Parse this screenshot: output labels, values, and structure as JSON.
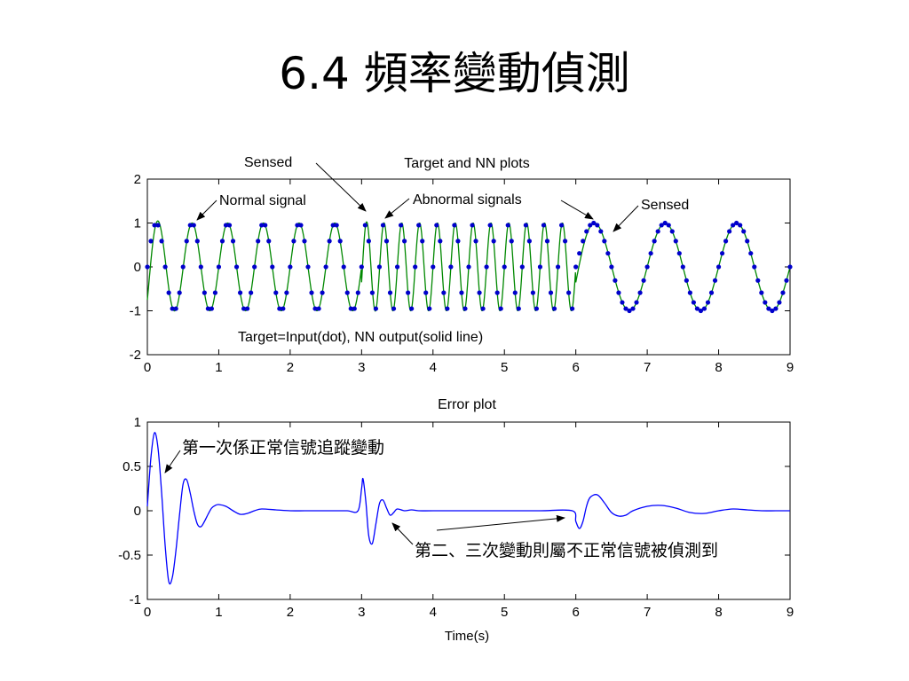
{
  "slide": {
    "title": "6.4 頻率變動偵測"
  },
  "chart_data": [
    {
      "type": "line",
      "title": "Target and NN plots",
      "xlabel": "",
      "ylabel": "",
      "xlim": [
        0,
        9
      ],
      "ylim": [
        -2,
        2
      ],
      "xticks": [
        "0",
        "1",
        "2",
        "3",
        "4",
        "5",
        "6",
        "7",
        "8",
        "9"
      ],
      "yticks": [
        "2",
        "1",
        "0",
        "-1",
        "-2"
      ],
      "grid": false,
      "legend": "none",
      "colors": {
        "target": "#0000cc",
        "nn_output": "#008800"
      },
      "segments": [
        {
          "t_start": 0,
          "t_end": 3,
          "frequency_hz": 2.0
        },
        {
          "t_start": 3,
          "t_end": 6,
          "frequency_hz": 4.0
        },
        {
          "t_start": 6,
          "t_end": 9,
          "frequency_hz": 1.0
        }
      ],
      "series": [
        {
          "style": "dots",
          "x_step": 0.05
        },
        {
          "style": "solid"
        }
      ],
      "annotations": {
        "sensed_1": "Sensed",
        "normal": "Normal signal",
        "abnormal": "Abnormal signals",
        "sensed_2": "Sensed",
        "footnote": "Target=Input(dot), NN output(solid line)"
      }
    },
    {
      "type": "line",
      "title": "Error plot",
      "xlabel": "Time(s)",
      "ylabel": "",
      "xlim": [
        0,
        9
      ],
      "ylim": [
        -1,
        1
      ],
      "xticks": [
        "0",
        "1",
        "2",
        "3",
        "4",
        "5",
        "6",
        "7",
        "8",
        "9"
      ],
      "yticks": [
        "1",
        "0.5",
        "0",
        "-0.5",
        "-1"
      ],
      "grid": false,
      "legend": "none",
      "colors": {
        "error": "#0000ff"
      },
      "series": [
        {
          "x": [
            0,
            0.05,
            0.1,
            0.15,
            0.2,
            0.25,
            0.3,
            0.35,
            0.4,
            0.45,
            0.5,
            0.55,
            0.6,
            0.65,
            0.7,
            0.75,
            0.8,
            0.85,
            0.9,
            0.95,
            1.0,
            1.1,
            1.2,
            1.3,
            1.4,
            1.5,
            1.6,
            1.8,
            2.0,
            2.2,
            2.4,
            2.6,
            2.8,
            2.95,
            3.0,
            3.02,
            3.06,
            3.1,
            3.15,
            3.2,
            3.25,
            3.3,
            3.35,
            3.4,
            3.45,
            3.5,
            3.6,
            3.7,
            3.8,
            4.0,
            4.5,
            5.0,
            5.5,
            5.95,
            6.0,
            6.05,
            6.1,
            6.15,
            6.2,
            6.3,
            6.4,
            6.5,
            6.6,
            6.7,
            6.8,
            7.0,
            7.2,
            7.4,
            7.6,
            7.8,
            8.0,
            8.2,
            8.4,
            8.6,
            8.8,
            9.0
          ],
          "y": [
            0.05,
            0.6,
            0.88,
            0.7,
            0.2,
            -0.4,
            -0.8,
            -0.75,
            -0.45,
            -0.05,
            0.3,
            0.35,
            0.2,
            0.0,
            -0.15,
            -0.18,
            -0.12,
            -0.04,
            0.03,
            0.06,
            0.07,
            0.05,
            0.0,
            -0.04,
            -0.03,
            0.0,
            0.02,
            0.01,
            0.0,
            0.0,
            0.0,
            0.0,
            0.0,
            0.0,
            0.25,
            0.36,
            0.1,
            -0.28,
            -0.37,
            -0.15,
            0.08,
            0.12,
            0.03,
            -0.05,
            -0.02,
            0.02,
            0.0,
            0.01,
            0.0,
            0.0,
            0.0,
            0.0,
            0.0,
            0.0,
            -0.12,
            -0.2,
            -0.12,
            0.05,
            0.15,
            0.18,
            0.09,
            -0.02,
            -0.06,
            -0.05,
            0.0,
            0.05,
            0.06,
            0.03,
            -0.02,
            -0.03,
            0.0,
            0.02,
            0.01,
            0.0,
            0.0,
            0.0
          ]
        }
      ],
      "annotations": {
        "first_change": "第一次係正常信號追蹤變動",
        "later_changes": "第二、三次變動則屬不正常信號被偵測到"
      }
    }
  ]
}
